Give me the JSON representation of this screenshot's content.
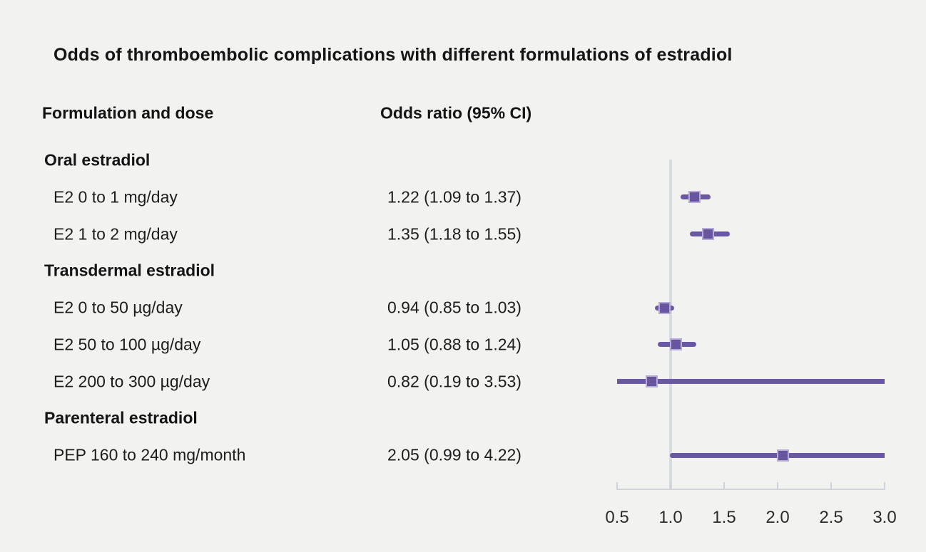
{
  "title": "Odds of thromboembolic complications with different formulations of estradiol",
  "columns": {
    "formulation": "Formulation and dose",
    "odds": "Odds ratio (95% CI)"
  },
  "colors": {
    "background": "#f2f2f1",
    "text": "#1d1d1d",
    "marker_fill": "#69559f",
    "marker_border": "#b7aad8",
    "ci_line": "#6a58a5",
    "reference_line": "#d7dbe3",
    "axis_line": "#cfd4dc",
    "tick_text": "#2b2b2b"
  },
  "chart_data": {
    "type": "forest",
    "title": "Odds of thromboembolic complications with different formulations of estradiol",
    "xlabel": "",
    "ylabel": "",
    "xlim": [
      0.5,
      3.0
    ],
    "reference_value": 1.0,
    "ticks": [
      {
        "value": 0.5,
        "label": "0.5"
      },
      {
        "value": 1.0,
        "label": "1.0"
      },
      {
        "value": 1.5,
        "label": "1.5"
      },
      {
        "value": 2.0,
        "label": "2.0"
      },
      {
        "value": 2.5,
        "label": "2.5"
      },
      {
        "value": 3.0,
        "label": "3.0"
      }
    ],
    "rows": [
      {
        "kind": "group",
        "label": "Oral estradiol"
      },
      {
        "kind": "item",
        "label": "E2 0 to 1 mg/day",
        "or_text": "1.22 (1.09 to 1.37)",
        "est": 1.22,
        "lo": 1.09,
        "hi": 1.37
      },
      {
        "kind": "item",
        "label": "E2 1 to 2 mg/day",
        "or_text": "1.35 (1.18 to 1.55)",
        "est": 1.35,
        "lo": 1.18,
        "hi": 1.55
      },
      {
        "kind": "group",
        "label": "Transdermal estradiol"
      },
      {
        "kind": "item",
        "label": "E2 0 to 50 µg/day",
        "or_text": "0.94 (0.85 to 1.03)",
        "est": 0.94,
        "lo": 0.85,
        "hi": 1.03
      },
      {
        "kind": "item",
        "label": "E2 50 to 100 µg/day",
        "or_text": "1.05 (0.88 to 1.24)",
        "est": 1.05,
        "lo": 0.88,
        "hi": 1.24
      },
      {
        "kind": "item",
        "label": "E2 200 to 300 µg/day",
        "or_text": "0.82 (0.19 to 3.53)",
        "est": 0.82,
        "lo": 0.19,
        "hi": 3.53
      },
      {
        "kind": "group",
        "label": "Parenteral estradiol"
      },
      {
        "kind": "item",
        "label": "PEP 160 to 240 mg/month",
        "or_text": "2.05 (0.99 to 4.22)",
        "est": 2.05,
        "lo": 0.99,
        "hi": 4.22
      }
    ]
  }
}
